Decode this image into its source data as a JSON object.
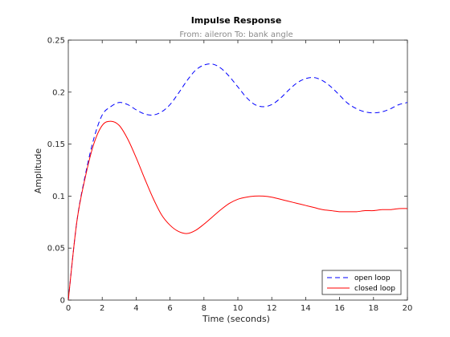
{
  "chart_data": {
    "type": "line",
    "title": "Impulse Response",
    "subtitle": "From: aileron  To: bank angle",
    "xlabel": "Time (seconds)",
    "ylabel": "Amplitude",
    "xlim": [
      0,
      20
    ],
    "ylim": [
      0,
      0.25
    ],
    "xticks": [
      0,
      2,
      4,
      6,
      8,
      10,
      12,
      14,
      16,
      18,
      20
    ],
    "yticks": [
      0,
      0.05,
      0.1,
      0.15,
      0.2,
      0.25
    ],
    "xtick_labels": [
      "0",
      "2",
      "4",
      "6",
      "8",
      "10",
      "12",
      "14",
      "16",
      "18",
      "20"
    ],
    "ytick_labels": [
      "0",
      "0.05",
      "0.1",
      "0.15",
      "0.2",
      "0.25"
    ],
    "grid": false,
    "legend_position": "bottom-right",
    "series": [
      {
        "name": "open loop",
        "color": "#0000ff",
        "line_style": "dashed",
        "x": [
          0,
          0.5,
          1,
          1.5,
          2,
          2.5,
          3,
          3.5,
          4,
          4.5,
          5,
          5.5,
          6,
          6.5,
          7,
          7.5,
          8,
          8.5,
          9,
          9.5,
          10,
          10.5,
          11,
          11.5,
          12,
          12.5,
          13,
          13.5,
          14,
          14.5,
          15,
          15.5,
          16,
          16.5,
          17,
          17.5,
          18,
          18.5,
          19,
          19.5,
          20
        ],
        "y": [
          0,
          0.075,
          0.12,
          0.155,
          0.178,
          0.186,
          0.19,
          0.188,
          0.183,
          0.179,
          0.178,
          0.181,
          0.188,
          0.199,
          0.211,
          0.221,
          0.226,
          0.227,
          0.223,
          0.215,
          0.205,
          0.195,
          0.188,
          0.186,
          0.188,
          0.194,
          0.202,
          0.209,
          0.213,
          0.214,
          0.211,
          0.205,
          0.197,
          0.189,
          0.184,
          0.181,
          0.18,
          0.181,
          0.184,
          0.188,
          0.19
        ]
      },
      {
        "name": "closed loop",
        "color": "#ff0000",
        "line_style": "solid",
        "x": [
          0,
          0.5,
          1,
          1.5,
          2,
          2.5,
          3,
          3.5,
          4,
          4.5,
          5,
          5.5,
          6,
          6.5,
          7,
          7.5,
          8,
          8.5,
          9,
          9.5,
          10,
          10.5,
          11,
          11.5,
          12,
          12.5,
          13,
          13.5,
          14,
          14.5,
          15,
          15.5,
          16,
          16.5,
          17,
          17.5,
          18,
          18.5,
          19,
          19.5,
          20
        ],
        "y": [
          0,
          0.075,
          0.118,
          0.15,
          0.168,
          0.172,
          0.168,
          0.155,
          0.137,
          0.117,
          0.098,
          0.082,
          0.072,
          0.066,
          0.064,
          0.067,
          0.073,
          0.08,
          0.087,
          0.093,
          0.097,
          0.099,
          0.1,
          0.1,
          0.099,
          0.097,
          0.095,
          0.093,
          0.091,
          0.089,
          0.087,
          0.086,
          0.085,
          0.085,
          0.085,
          0.086,
          0.086,
          0.087,
          0.087,
          0.088,
          0.088
        ]
      }
    ]
  }
}
